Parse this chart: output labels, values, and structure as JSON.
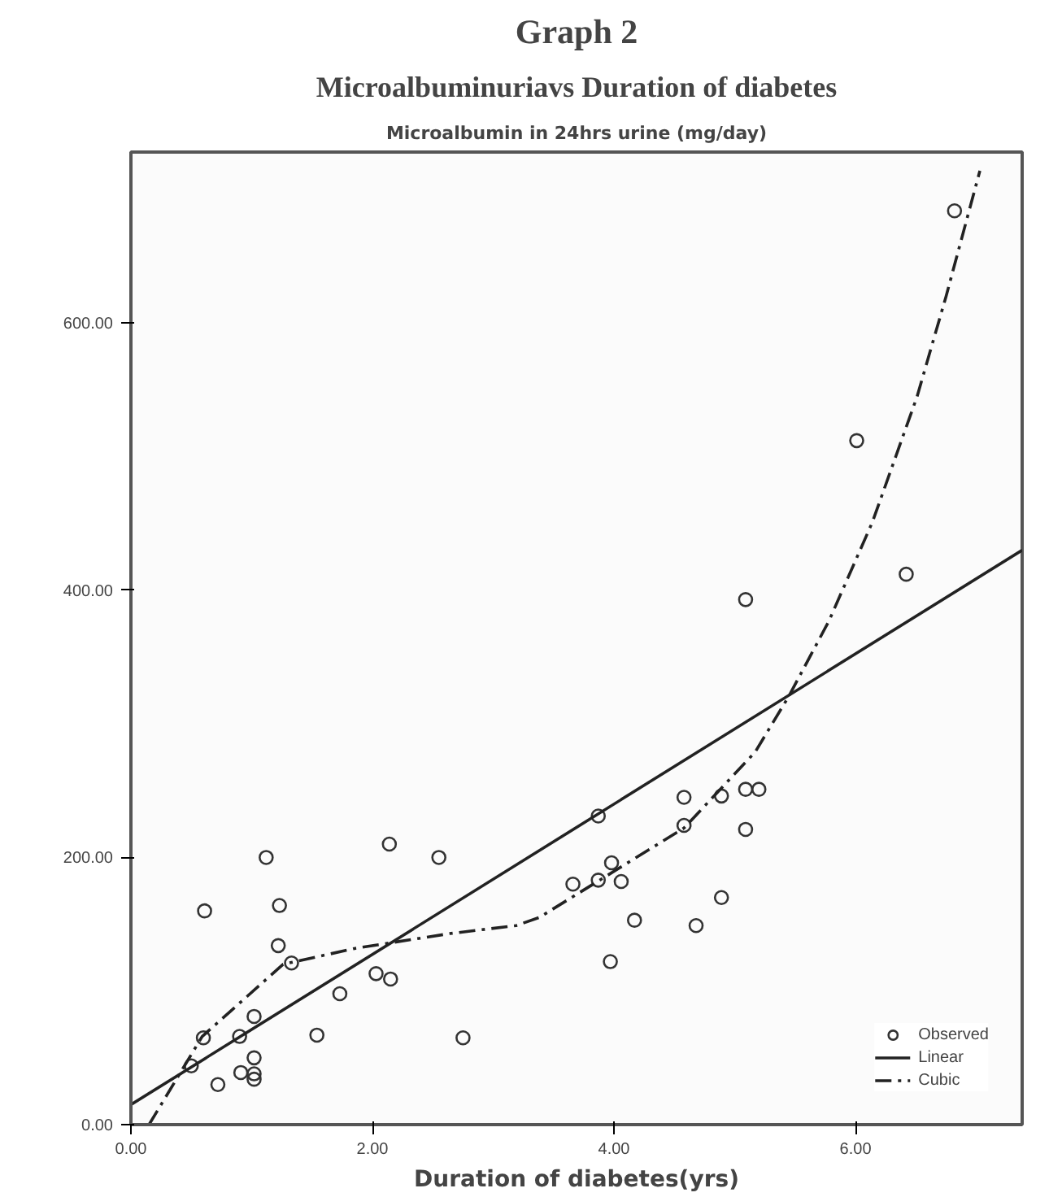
{
  "chart_data": {
    "type": "scatter",
    "title": "Graph 2",
    "subtitle": "Microalbuminuriavs Duration of diabetes",
    "annotations": [
      "Microalbumin in 24hrs urine (mg/day)"
    ],
    "xlabel": "Duration of diabetes(yrs)",
    "xlim": [
      0,
      7.38
    ],
    "ylim": [
      0,
      728
    ],
    "xticks": [
      {
        "value": 0,
        "label": "0.00"
      },
      {
        "value": 2,
        "label": "2.00"
      },
      {
        "value": 4,
        "label": "4.00"
      },
      {
        "value": 6,
        "label": "6.00"
      }
    ],
    "yticks": [
      {
        "value": 0,
        "label": "0.00"
      },
      {
        "value": 200,
        "label": "200.00"
      },
      {
        "value": 400,
        "label": "400.00"
      },
      {
        "value": 600,
        "label": "600.00"
      }
    ],
    "grid": false,
    "legend": "bottom right",
    "series": [
      {
        "name": "Observed",
        "marker": "circle",
        "color": "#333333",
        "x": [
          1.12,
          0.61,
          1.23,
          1.22,
          1.33,
          2.14,
          2.55,
          1.02,
          0.9,
          0.6,
          0.5,
          0.72,
          0.91,
          1.02,
          1.02,
          1.02,
          1.54,
          1.73,
          2.03,
          2.15,
          2.75,
          3.87,
          3.98,
          3.66,
          3.87,
          4.06,
          4.17,
          3.97,
          4.58,
          4.58,
          4.89,
          5.09,
          5.2,
          5.09,
          4.89,
          4.68,
          6.82,
          6.01,
          6.42,
          5.09
        ],
        "values": [
          200,
          160,
          164,
          134,
          121,
          210,
          200,
          81,
          66,
          65,
          44,
          30,
          39,
          50,
          38,
          34,
          67,
          98,
          113,
          109,
          65,
          231,
          196,
          180,
          183,
          182,
          153,
          122,
          245,
          224,
          246,
          251,
          251,
          221,
          170,
          149,
          684,
          512,
          412,
          393
        ]
      },
      {
        "name": "Linear",
        "type": "line",
        "line_style": "solid",
        "color": "#222222",
        "x": [
          0,
          7.38
        ],
        "values": [
          15,
          430
        ]
      },
      {
        "name": "Cubic",
        "type": "line",
        "line_style": "dashed",
        "color": "#222222",
        "x": [
          0.15,
          0.59,
          1.26,
          1.86,
          2.64,
          3.19,
          3.38,
          4.58,
          5.17,
          5.45,
          5.78,
          6.14,
          6.51,
          6.75,
          7.03
        ],
        "values": [
          0,
          66,
          120,
          132,
          143,
          149,
          155,
          222,
          279,
          321,
          377,
          451,
          545,
          620,
          714
        ]
      }
    ]
  }
}
